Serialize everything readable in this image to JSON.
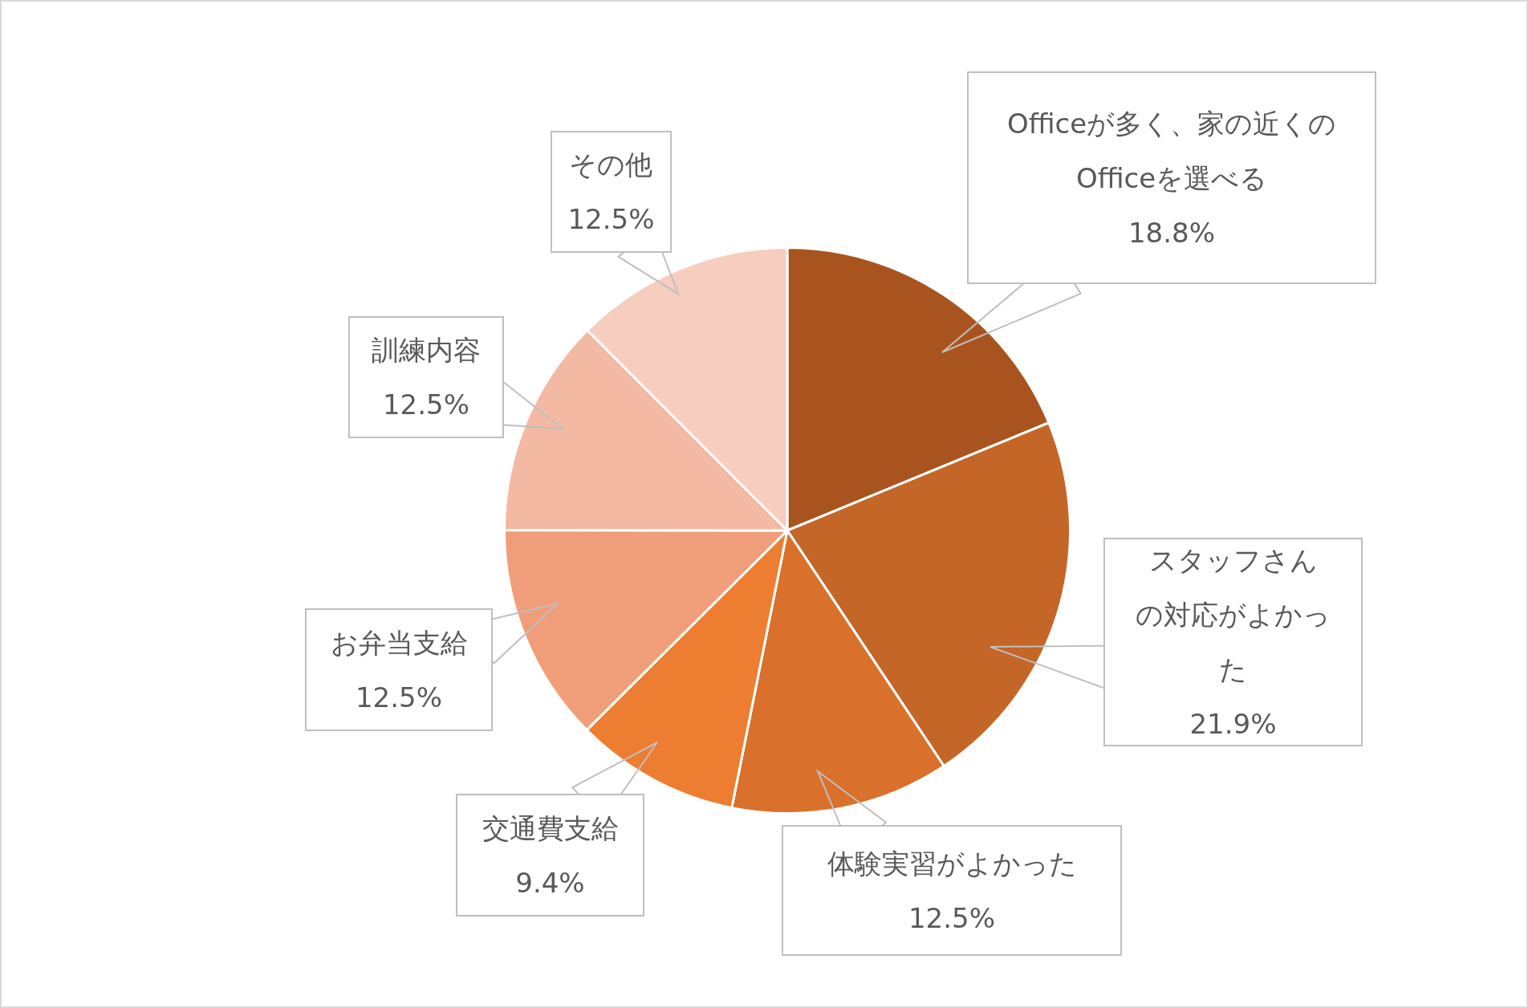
{
  "chart_data": {
    "type": "pie",
    "categories": [
      "Officeが多く、家の近くのOfficeを選べる",
      "スタッフさんの対応がよかった",
      "体験実習がよかった",
      "交通費支給",
      "お弁当支給",
      "訓練内容",
      "その他"
    ],
    "values": [
      18.8,
      21.9,
      12.5,
      9.4,
      12.5,
      12.5,
      12.5
    ],
    "value_labels": [
      "18.8%",
      "21.9%",
      "12.5%",
      "9.4%",
      "12.5%",
      "12.5%",
      "12.5%"
    ],
    "colors": [
      "#a9541f",
      "#c46628",
      "#d9702c",
      "#ed7d31",
      "#f09e7a",
      "#f4b9a3",
      "#f7cdc0"
    ]
  }
}
